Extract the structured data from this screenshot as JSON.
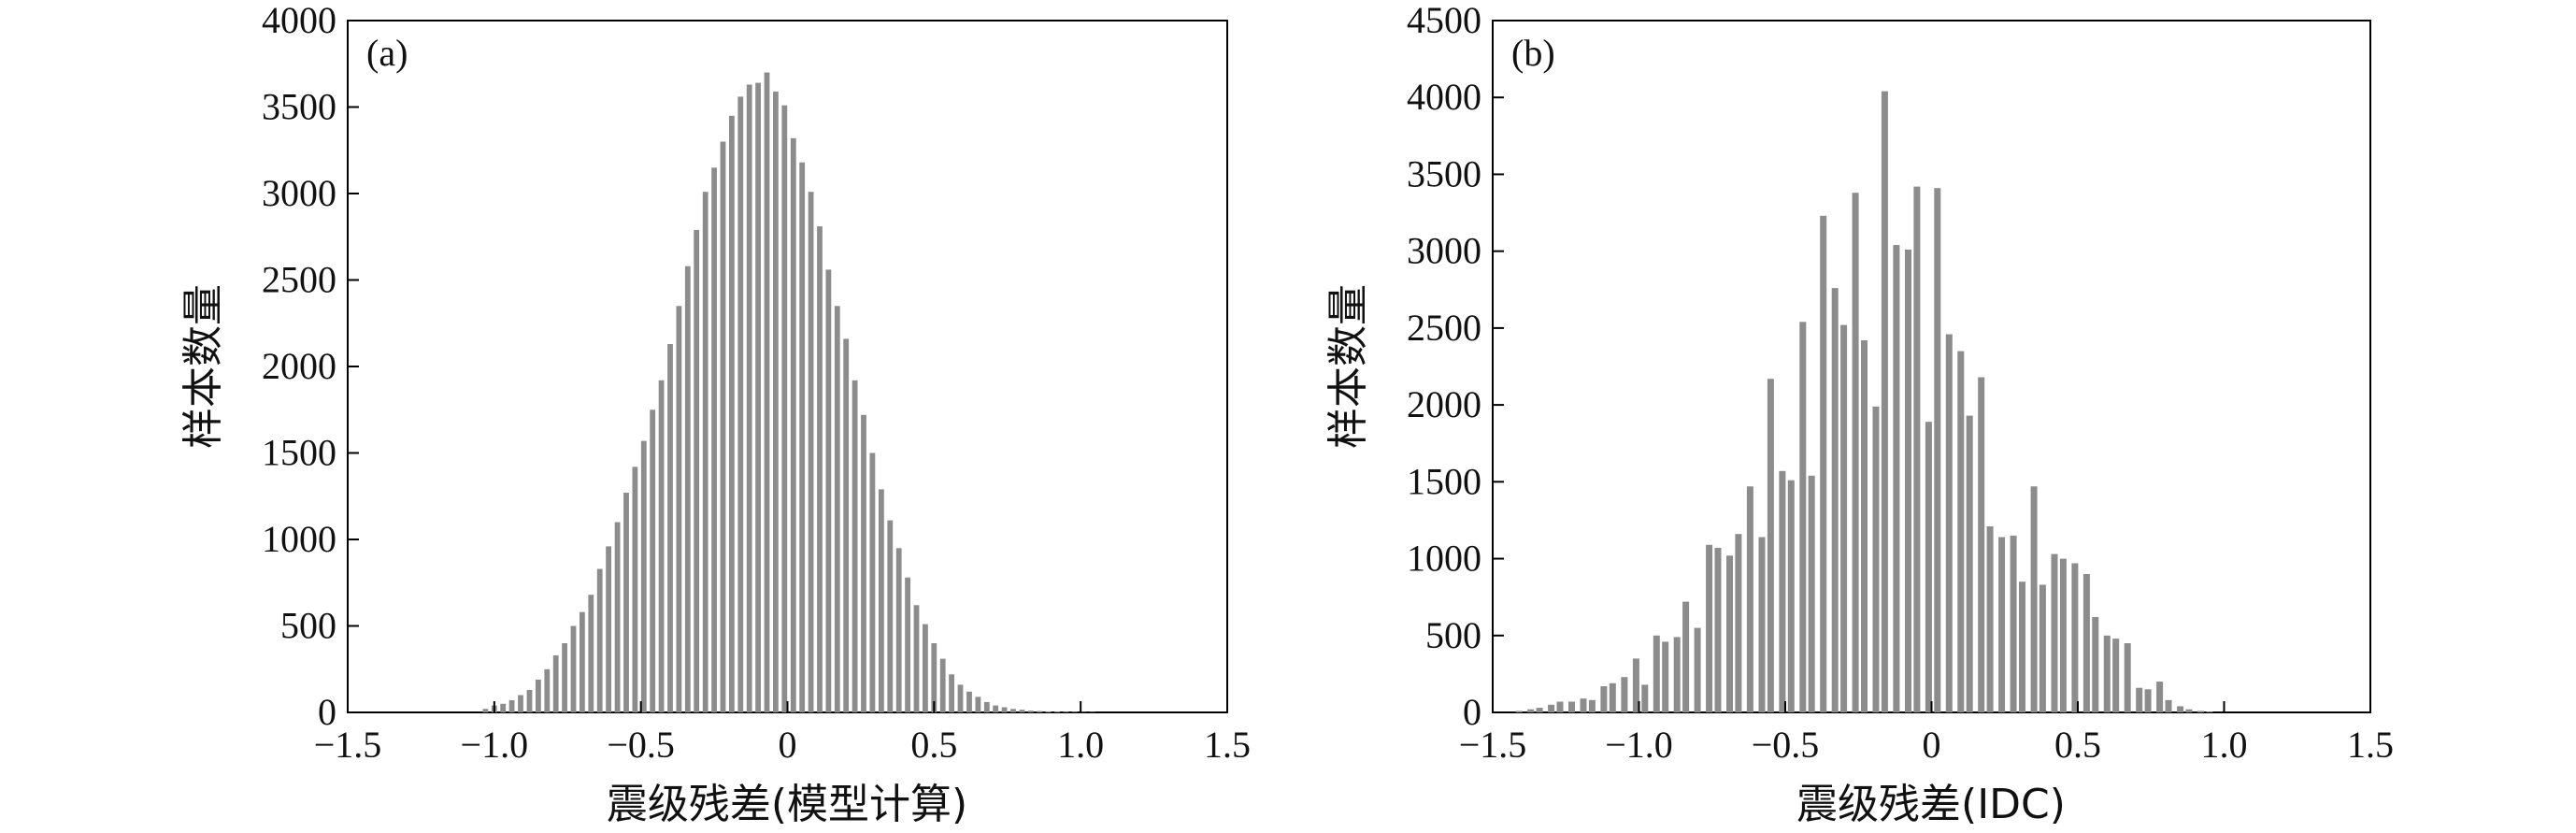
{
  "chart_data": [
    {
      "type": "bar",
      "panel_label": "(a)",
      "xlabel": "震级残差(模型计算)",
      "ylabel": "样本数量",
      "xlim": [
        -1.5,
        1.5
      ],
      "ylim": [
        0,
        4000
      ],
      "xticks": [
        "−1.5",
        "−1.0",
        "−0.5",
        "0",
        "0.5",
        "1.0",
        "1.5"
      ],
      "yticks": [
        "0",
        "500",
        "1000",
        "1500",
        "2000",
        "2500",
        "3000",
        "3500",
        "4000"
      ],
      "bin_width": 0.03,
      "x": [
        -1.03,
        -1.0,
        -0.97,
        -0.94,
        -0.91,
        -0.88,
        -0.85,
        -0.82,
        -0.79,
        -0.76,
        -0.73,
        -0.7,
        -0.67,
        -0.64,
        -0.61,
        -0.58,
        -0.55,
        -0.52,
        -0.49,
        -0.46,
        -0.43,
        -0.4,
        -0.37,
        -0.34,
        -0.31,
        -0.28,
        -0.25,
        -0.22,
        -0.19,
        -0.16,
        -0.13,
        -0.1,
        -0.07,
        -0.04,
        -0.01,
        0.02,
        0.05,
        0.08,
        0.11,
        0.14,
        0.17,
        0.2,
        0.23,
        0.26,
        0.29,
        0.32,
        0.35,
        0.38,
        0.41,
        0.44,
        0.47,
        0.5,
        0.53,
        0.56,
        0.59,
        0.62,
        0.65,
        0.68,
        0.71,
        0.74,
        0.77,
        0.8,
        0.83,
        0.86,
        0.89,
        0.92,
        0.95,
        0.98,
        1.01,
        1.04
      ],
      "values": [
        20,
        40,
        50,
        70,
        100,
        130,
        190,
        250,
        330,
        400,
        500,
        580,
        680,
        830,
        960,
        1100,
        1270,
        1420,
        1570,
        1750,
        1920,
        2130,
        2350,
        2580,
        2790,
        3010,
        3150,
        3300,
        3450,
        3560,
        3630,
        3640,
        3700,
        3590,
        3510,
        3320,
        3180,
        3010,
        2810,
        2560,
        2350,
        2160,
        1920,
        1720,
        1500,
        1290,
        1110,
        950,
        780,
        620,
        510,
        400,
        310,
        220,
        160,
        120,
        90,
        60,
        40,
        30,
        20,
        15,
        10,
        8,
        6,
        5,
        4,
        3,
        2,
        2
      ]
    },
    {
      "type": "bar",
      "panel_label": "(b)",
      "xlabel": "震级残差(IDC)",
      "ylabel": "样本数量",
      "xlim": [
        -1.5,
        1.5
      ],
      "ylim": [
        0,
        4500
      ],
      "xticks": [
        "−1.5",
        "−1.0",
        "−0.5",
        "0",
        "0.5",
        "1.0",
        "1.5"
      ],
      "yticks": [
        "0",
        "500",
        "1000",
        "1500",
        "2000",
        "2500",
        "3000",
        "3500",
        "4000",
        "4500"
      ],
      "bin_width": 0.036,
      "x": [
        -1.41,
        -1.37,
        -1.34,
        -1.3,
        -1.27,
        -1.23,
        -1.19,
        -1.16,
        -1.12,
        -1.09,
        -1.05,
        -1.01,
        -0.98,
        -0.94,
        -0.91,
        -0.87,
        -0.84,
        -0.8,
        -0.76,
        -0.73,
        -0.69,
        -0.66,
        -0.62,
        -0.58,
        -0.55,
        -0.51,
        -0.48,
        -0.44,
        -0.41,
        -0.37,
        -0.33,
        -0.3,
        -0.26,
        -0.23,
        -0.19,
        -0.16,
        -0.12,
        -0.08,
        -0.05,
        -0.01,
        0.02,
        0.06,
        0.1,
        0.13,
        0.17,
        0.2,
        0.24,
        0.28,
        0.31,
        0.35,
        0.38,
        0.42,
        0.45,
        0.49,
        0.53,
        0.56,
        0.6,
        0.63,
        0.67,
        0.71,
        0.74,
        0.78,
        0.81,
        0.85,
        0.88,
        0.92,
        0.95
      ],
      "values": [
        10,
        20,
        30,
        50,
        70,
        70,
        90,
        80,
        170,
        190,
        230,
        350,
        180,
        500,
        460,
        490,
        720,
        550,
        1090,
        1070,
        1020,
        1160,
        1470,
        1140,
        2170,
        1570,
        1510,
        2540,
        1540,
        3230,
        2760,
        2520,
        3380,
        2420,
        1990,
        4040,
        3040,
        3010,
        3420,
        1890,
        3410,
        2460,
        2350,
        1930,
        2180,
        1210,
        1140,
        1150,
        850,
        1470,
        830,
        1030,
        1000,
        970,
        900,
        620,
        500,
        480,
        450,
        160,
        150,
        200,
        80,
        40,
        20,
        10,
        5
      ]
    }
  ]
}
